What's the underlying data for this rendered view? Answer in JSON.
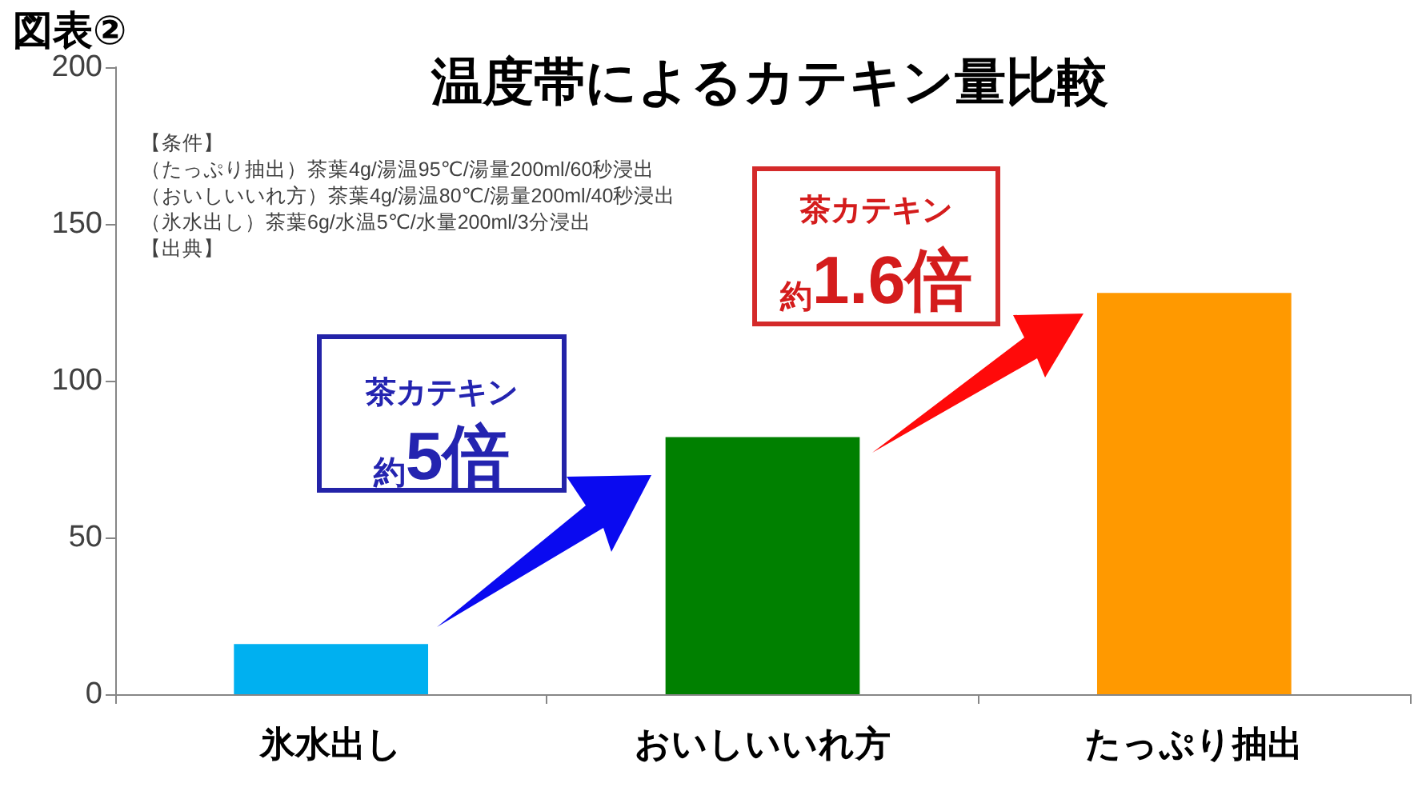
{
  "chart_data": {
    "type": "bar",
    "title": "温度帯によるカテキン量比較",
    "categories": [
      "氷水出し",
      "おいしいいれ方",
      "たっぷり抽出"
    ],
    "values": [
      16,
      82,
      128
    ],
    "colors": [
      "#00b0f0",
      "#008000",
      "#ff9900"
    ],
    "ylim": [
      0,
      200
    ],
    "yticks": [
      0,
      50,
      100,
      150,
      200
    ],
    "grid": false,
    "annotations": [
      "図表②",
      "【条件】",
      "（たっぷり抽出）茶葉4g/湯温95℃/湯量200ml/60秒浸出",
      "（おいしいいれ方）茶葉4g/湯温80℃/湯量200ml/40秒浸出",
      "（氷水出し）茶葉6g/水温5℃/水量200ml/3分浸出",
      "【出典】",
      "茶カテキン",
      "約5倍",
      "茶カテキン",
      "約1.6倍"
    ]
  }
}
